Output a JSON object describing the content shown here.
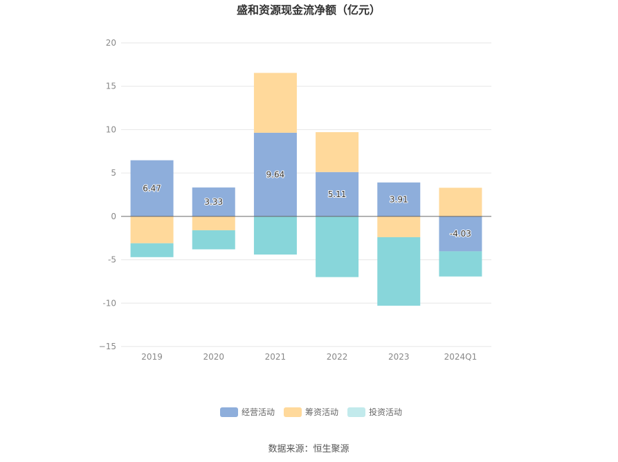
{
  "chart_data": {
    "type": "bar",
    "stacked": true,
    "title": "盛和资源现金流净额（亿元）",
    "categories": [
      "2019",
      "2020",
      "2021",
      "2022",
      "2023",
      "2024Q1"
    ],
    "series": [
      {
        "name": "经营活动",
        "color": "#8eaedb",
        "values": [
          6.47,
          3.33,
          9.64,
          5.11,
          3.91,
          -4.03
        ]
      },
      {
        "name": "筹资活动",
        "color": "#ffd99b",
        "values": [
          -3.1,
          -1.6,
          6.9,
          4.6,
          -2.4,
          3.3
        ]
      },
      {
        "name": "投资活动",
        "color": "#88d6da",
        "values": [
          -1.6,
          -2.2,
          -4.4,
          -7.0,
          -7.9,
          -2.9
        ]
      }
    ],
    "data_labels": [
      "6.47",
      "3.33",
      "9.64",
      "5.11",
      "3.91",
      "-4.03"
    ],
    "ylim": [
      -15,
      20
    ],
    "yticks": [
      20,
      15,
      10,
      5,
      0,
      -5,
      -10,
      -15
    ],
    "ytick_labels": [
      "20",
      "15",
      "10",
      "5",
      "0",
      "-5",
      "-10",
      "−15"
    ],
    "grid": true,
    "legend_position": "bottom",
    "legend": [
      {
        "label": "经营活动",
        "color": "#8eaedb"
      },
      {
        "label": "筹资活动",
        "color": "#ffd99b"
      },
      {
        "label": "投资活动",
        "color": "#c2eaec"
      }
    ]
  },
  "source_text": "数据来源：恒生聚源"
}
